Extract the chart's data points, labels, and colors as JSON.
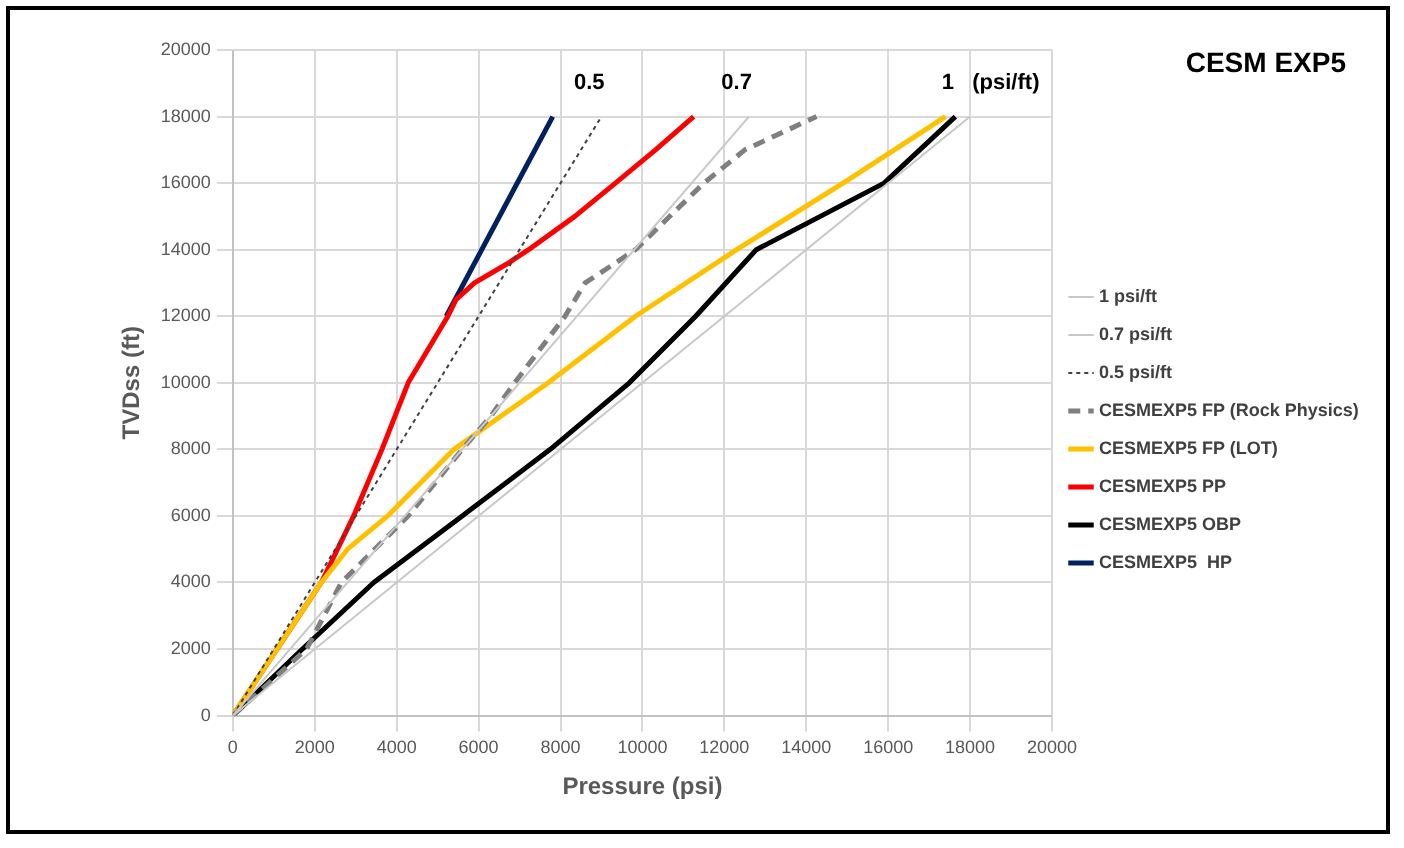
{
  "chart_data": {
    "type": "line",
    "title": "CESM EXP5",
    "xlabel": "Pressure (psi)",
    "ylabel": "TVDss (ft)",
    "xlim": [
      0,
      20000
    ],
    "xticks": [
      0,
      2000,
      4000,
      6000,
      8000,
      10000,
      12000,
      14000,
      16000,
      18000,
      20000
    ],
    "ylim": [
      0,
      20000
    ],
    "yticks": [
      0,
      2000,
      4000,
      6000,
      8000,
      10000,
      12000,
      14000,
      16000,
      18000,
      20000
    ],
    "grid": true,
    "legend": "right",
    "marker": "none",
    "annotations": [
      "0.5",
      "0.7",
      "1   (psi/ft)"
    ],
    "series": [
      {
        "name": "1 psi/ft",
        "color": "#c8c8c8",
        "x": [
          0,
          18000
        ],
        "values": [
          0,
          18000
        ]
      },
      {
        "name": "0.7 psi/ft",
        "color": "#c8c8c8",
        "x": [
          0,
          12600
        ],
        "values": [
          0,
          18000
        ]
      },
      {
        "name": "0.5 psi/ft",
        "color": "#404040",
        "line_style": "dotted",
        "x": [
          0,
          9000
        ],
        "values": [
          0,
          18000
        ]
      },
      {
        "name": "CESMEXP5 FP (Rock Physics)",
        "color": "#7f7f7f",
        "line_style": "dashed",
        "x": [
          0,
          1800,
          2650,
          4280,
          5600,
          6300,
          6880,
          8110,
          8600,
          9830,
          11500,
          12500,
          14250
        ],
        "values": [
          0,
          2000,
          4000,
          6000,
          8000,
          9000,
          10000,
          12000,
          13000,
          14000,
          16000,
          17000,
          18000
        ]
      },
      {
        "name": "CESMEXP5 FP (LOT)",
        "color": "#ffc000",
        "x": [
          0,
          2160,
          2800,
          3780,
          5400,
          7700,
          9830,
          12300,
          14900,
          17400
        ],
        "values": [
          0,
          4000,
          5000,
          6000,
          8000,
          10000,
          12000,
          14000,
          16000,
          18000
        ]
      },
      {
        "name": "CESMEXP5 PP",
        "color": "#ff0000",
        "x": [
          0,
          2160,
          2950,
          3640,
          4280,
          5250,
          5450,
          5900,
          6730,
          7220,
          8350,
          9340,
          10320,
          11250
        ],
        "values": [
          0,
          4000,
          6000,
          8000,
          10000,
          12000,
          12500,
          13000,
          13600,
          14000,
          15000,
          16000,
          17000,
          18000
        ]
      },
      {
        "name": "CESMEXP5 OBP",
        "color": "#000000",
        "x": [
          0,
          1700,
          3440,
          5600,
          7750,
          9680,
          11300,
          12780,
          15900,
          17640
        ],
        "values": [
          0,
          2000,
          4000,
          6000,
          8000,
          10000,
          12000,
          14000,
          16000,
          18000
        ]
      },
      {
        "name": "CESMEXP5  HP",
        "color": "#002060",
        "x": [
          5210,
          7810
        ],
        "values": [
          12000,
          18000
        ]
      }
    ]
  }
}
